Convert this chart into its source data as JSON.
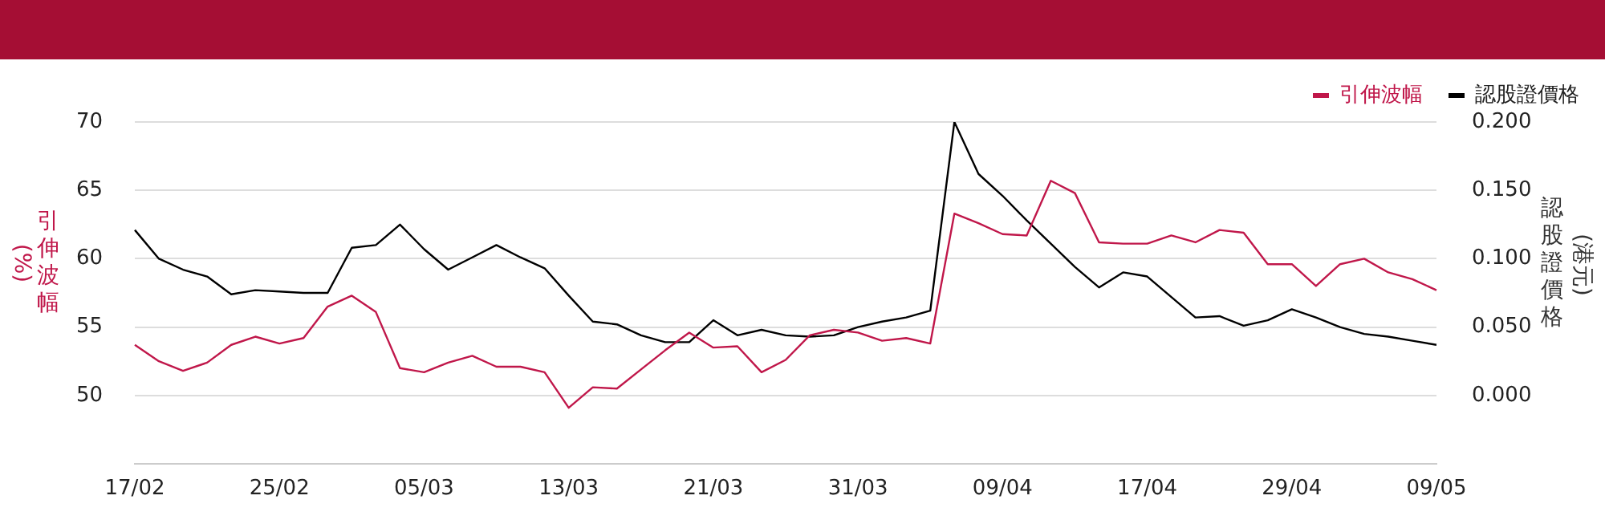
{
  "chart_data": {
    "type": "line",
    "ylabel": "引伸波幅(%)",
    "y2label": "認股證價格(港元)",
    "categories": [
      "17/02",
      null,
      null,
      null,
      null,
      null,
      "25/02",
      null,
      null,
      null,
      null,
      null,
      "05/03",
      null,
      null,
      null,
      null,
      null,
      "13/03",
      null,
      null,
      null,
      null,
      null,
      "21/03",
      null,
      null,
      null,
      null,
      null,
      "31/03",
      null,
      null,
      null,
      null,
      null,
      "09/04",
      null,
      null,
      null,
      null,
      null,
      "17/04",
      null,
      null,
      null,
      null,
      null,
      "29/04",
      null,
      null,
      null,
      null,
      null,
      "09/05"
    ],
    "series": [
      {
        "name": "引伸波幅",
        "color": "#c0174a",
        "values": [
          53.7,
          52.5,
          51.8,
          52.4,
          53.7,
          54.3,
          53.8,
          54.2,
          56.5,
          57.3,
          56.1,
          52.0,
          51.7,
          52.4,
          52.9,
          52.1,
          52.1,
          51.7,
          49.1,
          50.6,
          50.5,
          51.9,
          53.3,
          54.6,
          53.5,
          53.6,
          51.7,
          52.6,
          54.4,
          54.8,
          54.6,
          54.0,
          54.2,
          53.8,
          63.3,
          62.6,
          61.8,
          61.7,
          65.7,
          64.8,
          61.2,
          61.1,
          61.1,
          61.7,
          61.2,
          62.1,
          61.9,
          59.6,
          59.6,
          58.0,
          59.6,
          60.0,
          59.0,
          58.5,
          57.7
        ]
      },
      {
        "name": "認股證價格",
        "color": "#000000",
        "axis": "y2",
        "values": [
          0.121,
          0.1,
          0.092,
          0.087,
          0.074,
          0.077,
          0.076,
          0.075,
          0.075,
          0.108,
          0.11,
          0.125,
          0.107,
          0.092,
          0.101,
          0.11,
          0.101,
          0.093,
          0.073,
          0.054,
          0.052,
          0.044,
          0.039,
          0.039,
          0.055,
          0.044,
          0.048,
          0.044,
          0.043,
          0.044,
          0.05,
          0.054,
          0.057,
          0.062,
          0.2,
          0.162,
          0.146,
          0.128,
          0.111,
          0.094,
          0.079,
          0.09,
          0.087,
          0.072,
          0.057,
          0.058,
          0.051,
          0.055,
          0.063,
          0.057,
          0.05,
          0.045,
          0.043,
          0.04,
          0.037
        ]
      }
    ],
    "ylim": [
      45,
      70
    ],
    "yticks": [
      50,
      55,
      60,
      65,
      70
    ],
    "y2lim": [
      -0.05,
      0.2
    ],
    "y2ticks": [
      {
        "value": 0,
        "label": "0.000"
      },
      {
        "value": 0.05,
        "label": "0.050"
      },
      {
        "value": 0.1,
        "label": "0.100"
      },
      {
        "value": 0.15,
        "label": "0.150"
      },
      {
        "value": 0.2,
        "label": "0.200"
      }
    ],
    "grid": "y",
    "legend": "top right",
    "marker": "none",
    "line_style": "solid"
  }
}
